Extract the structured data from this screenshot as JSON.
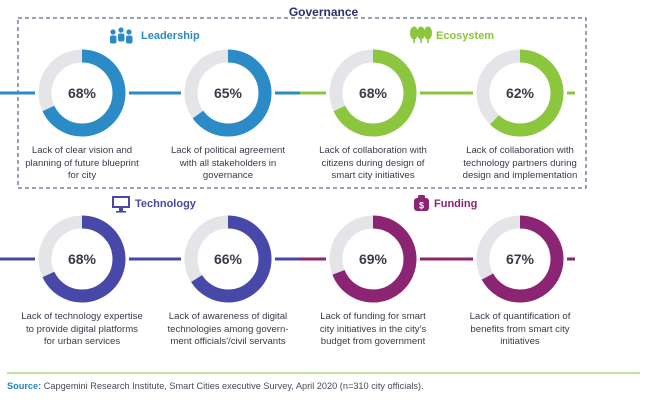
{
  "title": "Governance",
  "headers": {
    "leadership": "Leadership",
    "ecosystem": "Ecosystem",
    "technology": "Technology",
    "funding": "Funding"
  },
  "colors": {
    "leadership": "#2a8bc7",
    "ecosystem": "#8cc63f",
    "technology": "#4848a8",
    "funding": "#8b2472",
    "track": "#e4e5e8",
    "dashed_border": "#3d3d6b"
  },
  "chart_data": {
    "type": "donut",
    "unit": "%",
    "items": [
      {
        "category": "Leadership",
        "value": 68,
        "label": "68%",
        "text": [
          "Lack of clear vision and",
          "planning of future blueprint",
          "for city"
        ]
      },
      {
        "category": "Leadership",
        "value": 65,
        "label": "65%",
        "text": [
          "Lack of political agreement",
          "with all stakeholders in",
          "governance"
        ]
      },
      {
        "category": "Ecosystem",
        "value": 68,
        "label": "68%",
        "text": [
          "Lack of collaboration with",
          "citizens during design of",
          "smart city initiatives"
        ]
      },
      {
        "category": "Ecosystem",
        "value": 62,
        "label": "62%",
        "text": [
          "Lack of collaboration with",
          "technology partners during",
          "design and implementation"
        ]
      },
      {
        "category": "Technology",
        "value": 68,
        "label": "68%",
        "text": [
          "Lack of technology expertise",
          "to provide digital platforms",
          "for urban services"
        ]
      },
      {
        "category": "Technology",
        "value": 66,
        "label": "66%",
        "text": [
          "Lack of awareness of digital",
          "technologies among govern-",
          "ment officials'/civil servants"
        ]
      },
      {
        "category": "Funding",
        "value": 69,
        "label": "69%",
        "text": [
          "Lack of funding for smart",
          "city initiatives in the city's",
          "budget from government"
        ]
      },
      {
        "category": "Funding",
        "value": 67,
        "label": "67%",
        "text": [
          "Lack of quantification of",
          "benefits from smart city",
          "initiatives"
        ]
      }
    ]
  },
  "source": {
    "label": "Source:",
    "text": "Capgemini Research Institute, Smart Cities executive Survey, April 2020 (n=310 city officials)."
  }
}
